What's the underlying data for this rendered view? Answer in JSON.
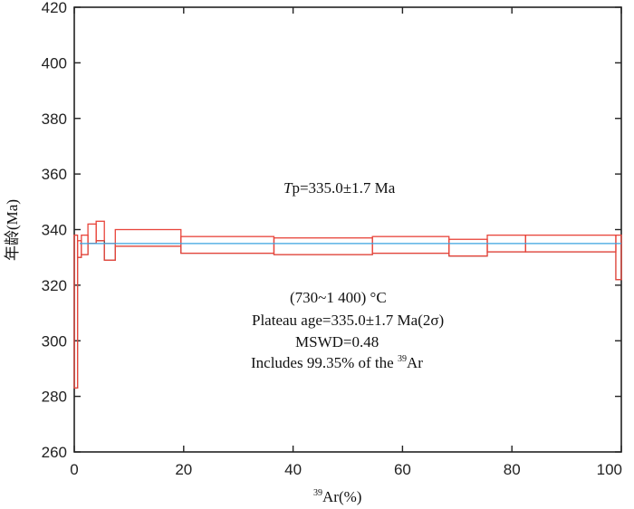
{
  "chart_data": {
    "type": "line",
    "title": "",
    "xlabel": "Ar(%)",
    "xlabel_superscript": "39",
    "ylabel": "年龄(Ma)",
    "xlim": [
      0,
      100
    ],
    "ylim": [
      260,
      420
    ],
    "x_ticks": [
      0,
      20,
      40,
      60,
      80,
      100
    ],
    "y_ticks": [
      260,
      280,
      300,
      320,
      340,
      360,
      380,
      400,
      420
    ],
    "grid": false,
    "colors": {
      "steps": "#e8443a",
      "plateau_line": "#3aa3e0",
      "axis": "#222222",
      "black_step": "#222222"
    },
    "plateau_age": 335.0,
    "age_spectrum": [
      {
        "x0": 0.0,
        "x1": 0.6,
        "y_low": 283.0,
        "y_high": 338.0
      },
      {
        "x0": 0.6,
        "x1": 1.3,
        "y_low": 330.0,
        "y_high": 336.0
      },
      {
        "x0": 1.3,
        "x1": 2.5,
        "y_low": 331.0,
        "y_high": 338.0
      },
      {
        "x0": 2.5,
        "x1": 4.0,
        "y_low": 335.0,
        "y_high": 342.0
      },
      {
        "x0": 4.0,
        "x1": 5.5,
        "y_low": 336.0,
        "y_high": 343.0
      },
      {
        "x0": 5.5,
        "x1": 7.5,
        "y_low": 329.0,
        "y_high": 335.0
      },
      {
        "x0": 7.5,
        "x1": 19.5,
        "y_low": 334.0,
        "y_high": 340.0
      },
      {
        "x0": 19.5,
        "x1": 36.5,
        "y_low": 331.5,
        "y_high": 337.5
      },
      {
        "x0": 36.5,
        "x1": 54.5,
        "y_low": 331.0,
        "y_high": 337.0
      },
      {
        "x0": 54.5,
        "x1": 68.5,
        "y_low": 331.5,
        "y_high": 337.5
      },
      {
        "x0": 68.5,
        "x1": 75.5,
        "y_low": 330.5,
        "y_high": 336.5
      },
      {
        "x0": 75.5,
        "x1": 82.5,
        "y_low": 332.0,
        "y_high": 338.0
      },
      {
        "x0": 82.5,
        "x1": 99.0,
        "y_low": 332.0,
        "y_high": 338.0
      },
      {
        "x0": 99.0,
        "x1": 100.0,
        "y_low": 322.0,
        "y_high": 338.0
      }
    ],
    "annotations": {
      "tp_italic": "T",
      "tp_rest": "p=335.0±1.7 Ma",
      "range": "(730~1 400) °C",
      "plateau": "Plateau age=335.0±1.7 Ma(2σ)",
      "mswd": "MSWD=0.48",
      "includes_prefix": "Includes 99.35% of the ",
      "includes_sup": "39",
      "includes_suffix": "Ar"
    }
  }
}
